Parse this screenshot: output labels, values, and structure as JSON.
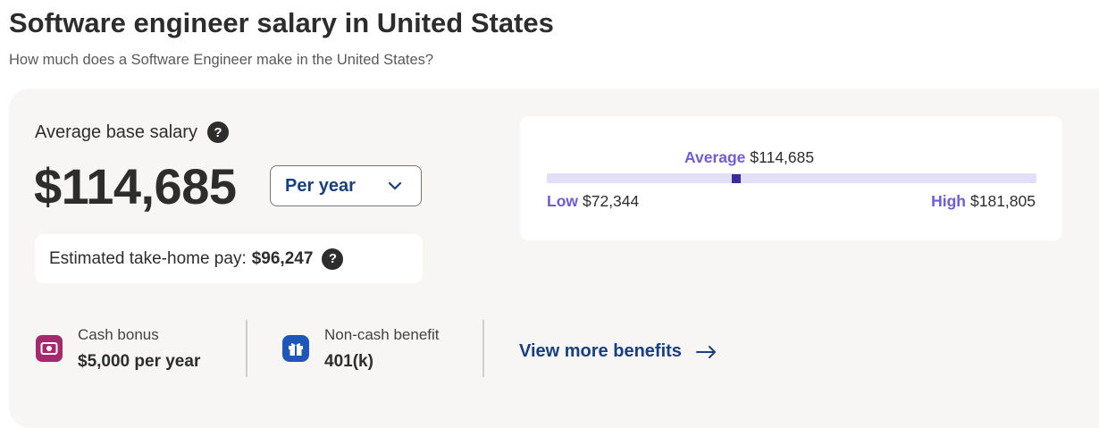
{
  "header": {
    "title": "Software engineer salary in United States",
    "subtitle": "How much does a Software Engineer make in the United States?"
  },
  "summary": {
    "label": "Average base salary",
    "amount": "$114,685",
    "period_selected": "Per year",
    "take_home_label": "Estimated take-home pay:",
    "take_home_value": "$96,247"
  },
  "range": {
    "average_label": "Average",
    "average_value": "$114,685",
    "low_label": "Low",
    "low_value": "$72,344",
    "high_label": "High",
    "high_value": "$181,805"
  },
  "benefits": [
    {
      "label": "Cash bonus",
      "value": "$5,000 per year",
      "icon": "cash-icon",
      "color": "#a5296c"
    },
    {
      "label": "Non-cash benefit",
      "value": "401(k)",
      "icon": "gift-icon",
      "color": "#1d58b9"
    }
  ],
  "more_link": "View more benefits",
  "colors": {
    "accent": "#6f5bdb",
    "link": "#164081",
    "marker": "#3b2c9c",
    "card_bg": "#f7f6f4"
  }
}
